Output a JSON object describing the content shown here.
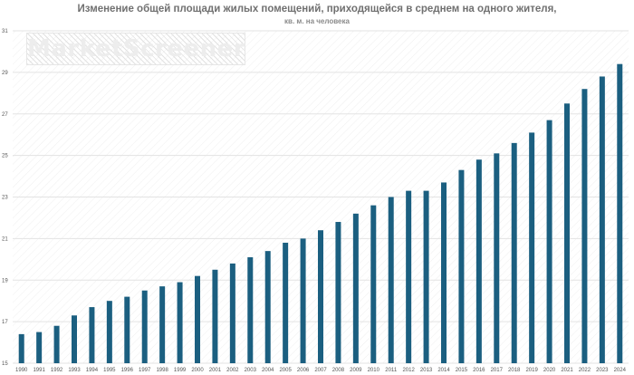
{
  "chart_data": {
    "type": "bar",
    "title": "Изменение общей площади жилых помещений, приходящейся в среднем на одного жителя,",
    "subtitle": "кв. м. на человека",
    "categories": [
      "1990",
      "1991",
      "1992",
      "1993",
      "1994",
      "1995",
      "1996",
      "1997",
      "1998",
      "1999",
      "2000",
      "2001",
      "2002",
      "2003",
      "2004",
      "2005",
      "2006",
      "2007",
      "2008",
      "2009",
      "2010",
      "2011",
      "2012",
      "2013",
      "2014",
      "2015",
      "2016",
      "2017",
      "2018",
      "2019",
      "2020",
      "2021",
      "2022",
      "2023",
      "2024"
    ],
    "values": [
      16.4,
      16.5,
      16.8,
      17.3,
      17.7,
      18.0,
      18.2,
      18.5,
      18.7,
      18.9,
      19.2,
      19.5,
      19.8,
      20.1,
      20.4,
      20.8,
      21.0,
      21.4,
      21.8,
      22.2,
      22.6,
      23.0,
      23.3,
      23.3,
      23.7,
      24.3,
      24.8,
      25.1,
      25.6,
      26.1,
      26.7,
      27.5,
      28.2,
      28.8,
      29.4
    ],
    "ylim": [
      15,
      31
    ],
    "yticks": [
      15,
      17,
      19,
      21,
      23,
      25,
      27,
      29,
      31
    ],
    "bar_color": "#1b5f80",
    "grid": true,
    "watermark": "MarketScreener"
  }
}
